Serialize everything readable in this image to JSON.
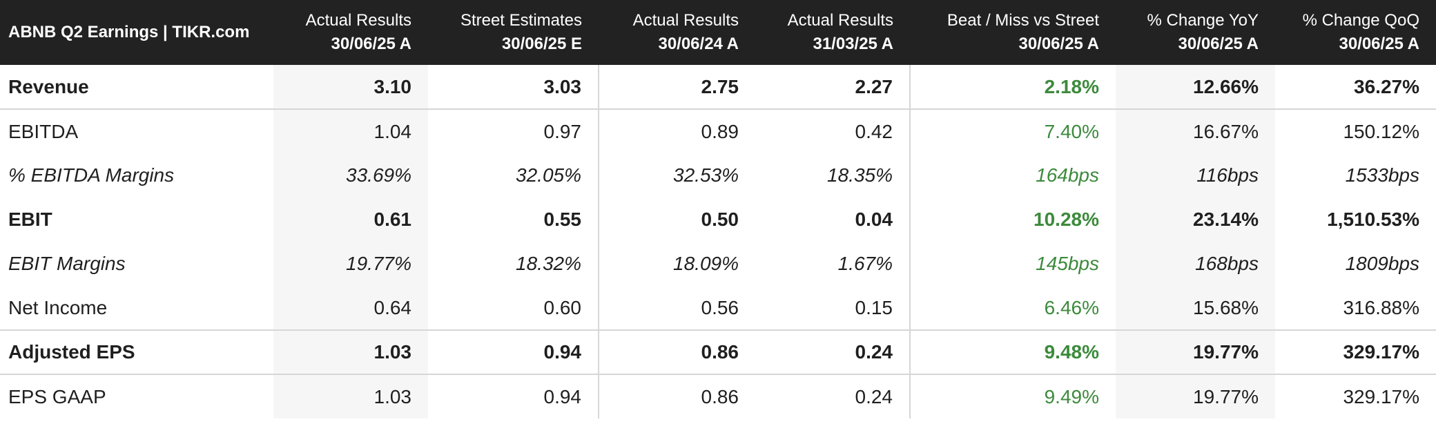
{
  "table": {
    "title": "ABNB Q2 Earnings | TIKR.com",
    "columns": [
      {
        "top": "Actual Results",
        "bottom": "30/06/25 A"
      },
      {
        "top": "Street Estimates",
        "bottom": "30/06/25 E"
      },
      {
        "top": "Actual Results",
        "bottom": "30/06/24 A"
      },
      {
        "top": "Actual Results",
        "bottom": "31/03/25 A"
      },
      {
        "top": "Beat / Miss vs Street",
        "bottom": "30/06/25 A"
      },
      {
        "top": "% Change YoY",
        "bottom": "30/06/25 A"
      },
      {
        "top": "% Change QoQ",
        "bottom": "30/06/25 A"
      }
    ],
    "rows": [
      {
        "label": "Revenue",
        "values": [
          "3.10",
          "3.03",
          "2.75",
          "2.27",
          "2.18%",
          "12.66%",
          "36.27%"
        ]
      },
      {
        "label": "EBITDA",
        "values": [
          "1.04",
          "0.97",
          "0.89",
          "0.42",
          "7.40%",
          "16.67%",
          "150.12%"
        ]
      },
      {
        "label": "% EBITDA Margins",
        "values": [
          "33.69%",
          "32.05%",
          "32.53%",
          "18.35%",
          "164bps",
          "116bps",
          "1533bps"
        ]
      },
      {
        "label": "EBIT",
        "values": [
          "0.61",
          "0.55",
          "0.50",
          "0.04",
          "10.28%",
          "23.14%",
          "1,510.53%"
        ]
      },
      {
        "label": "EBIT Margins",
        "values": [
          "19.77%",
          "18.32%",
          "18.09%",
          "1.67%",
          "145bps",
          "168bps",
          "1809bps"
        ]
      },
      {
        "label": "Net Income",
        "values": [
          "0.64",
          "0.60",
          "0.56",
          "0.15",
          "6.46%",
          "15.68%",
          "316.88%"
        ]
      },
      {
        "label": "Adjusted EPS",
        "values": [
          "1.03",
          "0.94",
          "0.86",
          "0.24",
          "9.48%",
          "19.77%",
          "329.17%"
        ]
      },
      {
        "label": "EPS GAAP",
        "values": [
          "1.03",
          "0.94",
          "0.86",
          "0.24",
          "9.49%",
          "19.77%",
          "329.17%"
        ]
      }
    ]
  },
  "colors": {
    "header_bg": "#222222",
    "positive": "#3c8a3c",
    "shade": "#f6f6f6",
    "divider": "#d6d6d6"
  }
}
